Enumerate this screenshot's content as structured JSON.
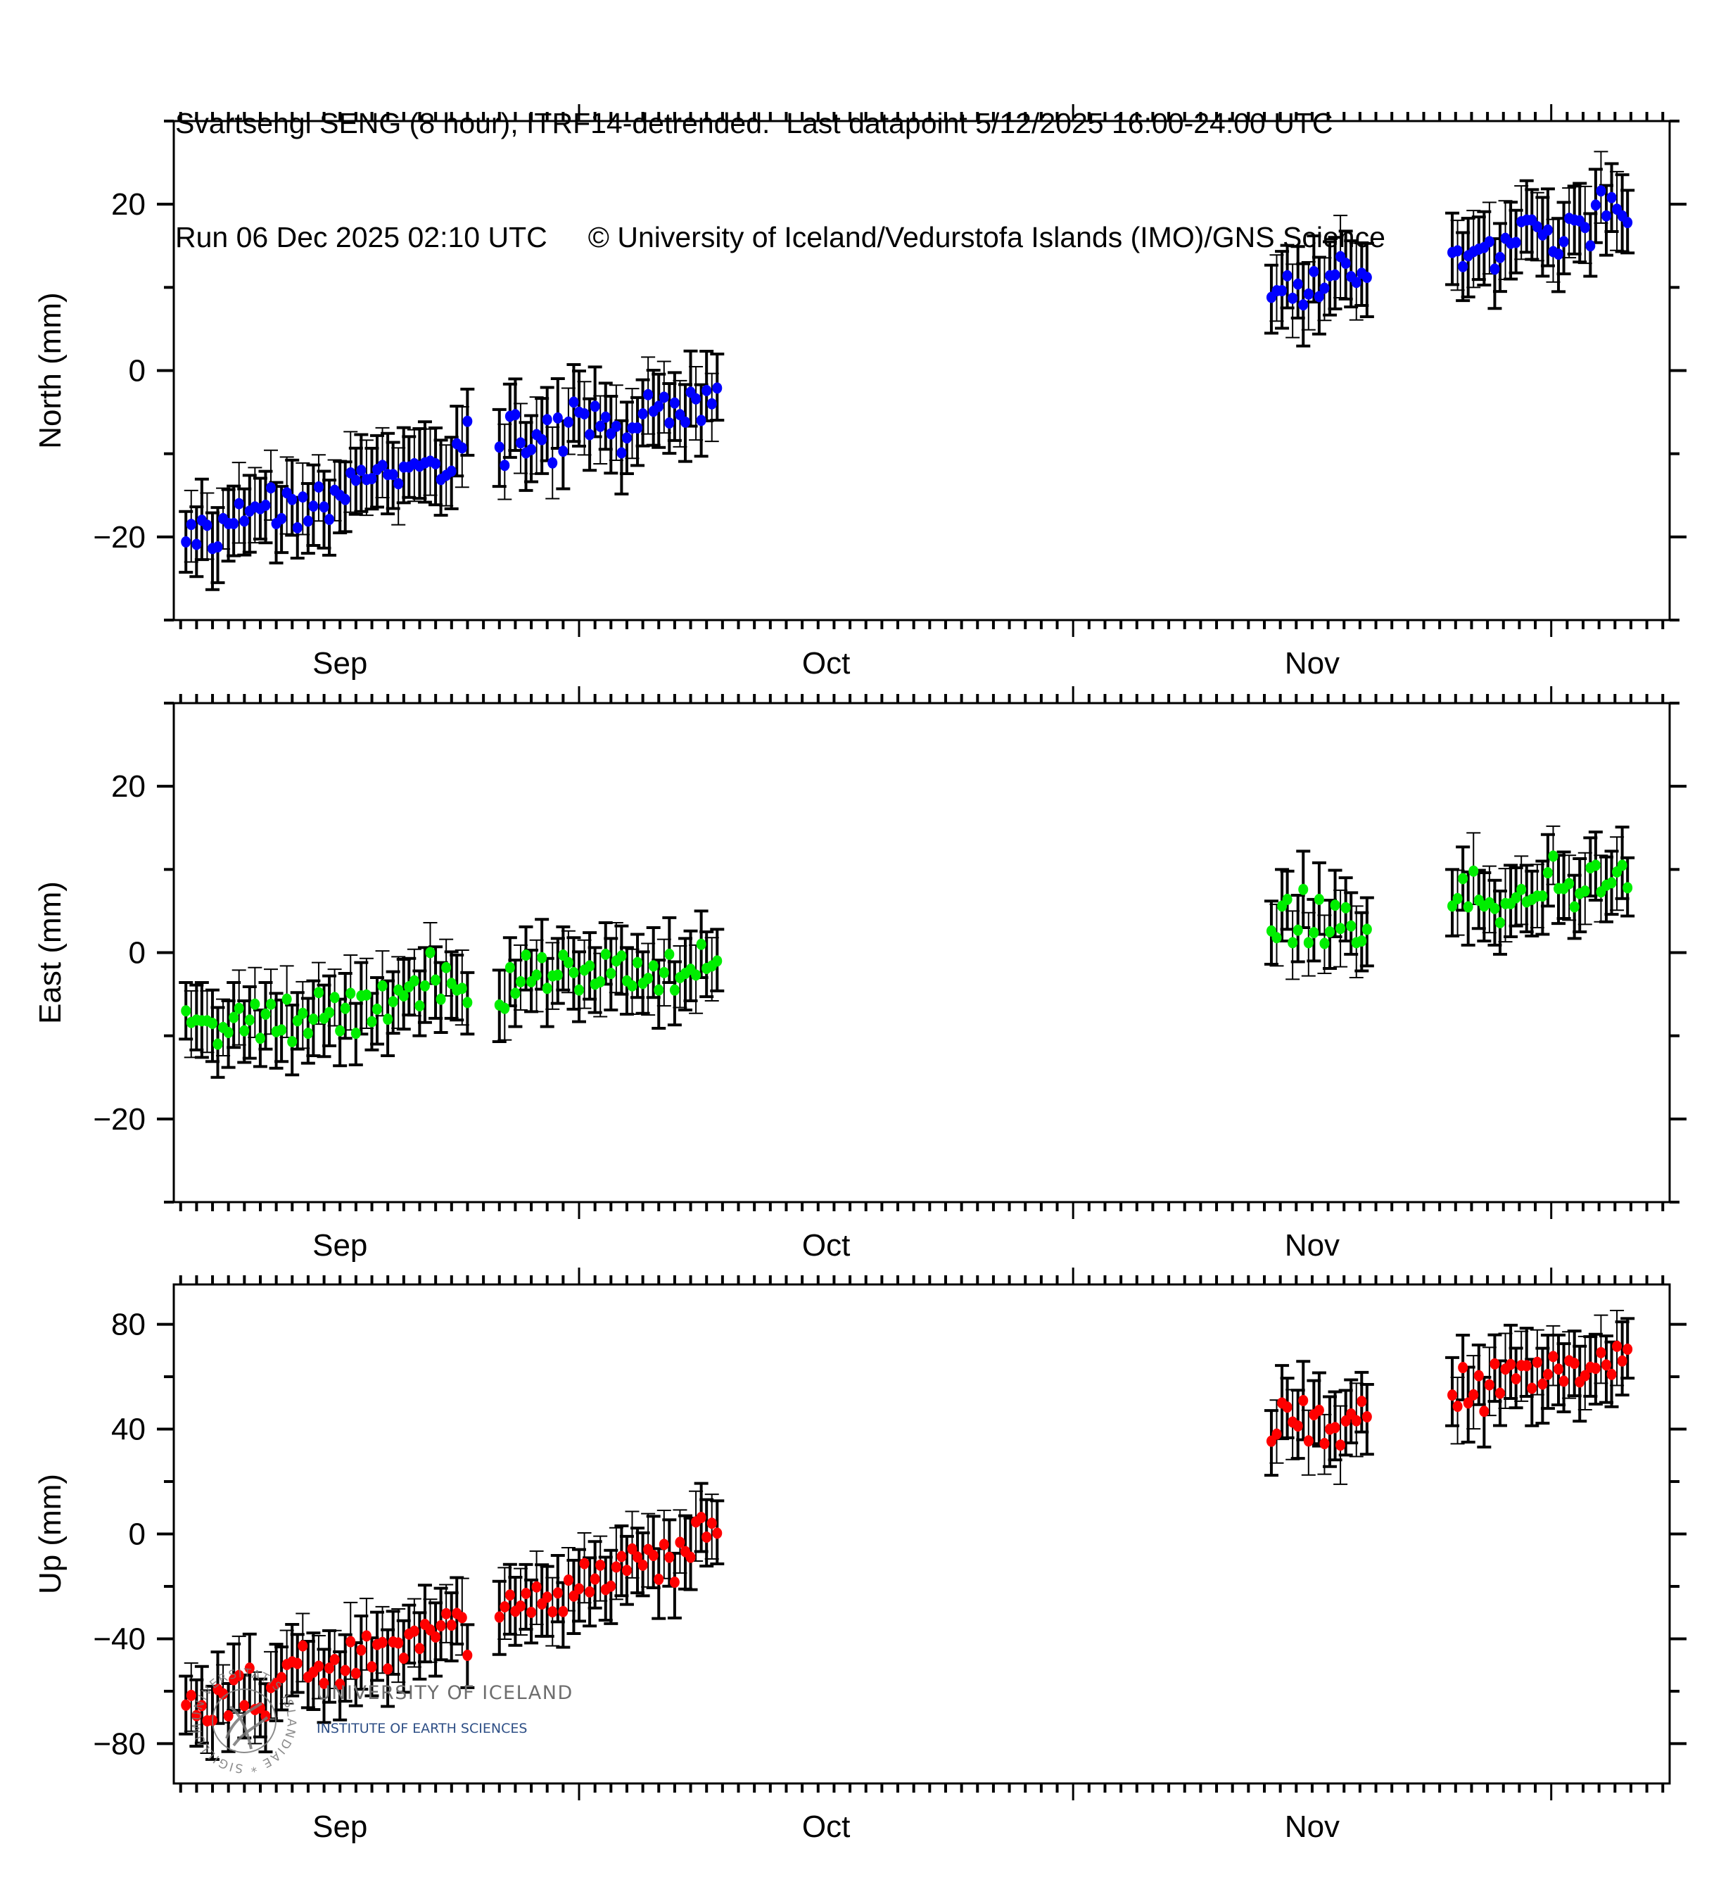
{
  "header": {
    "title_line1": "Svartsengi SENG (8 hour), ITRF14-detrended.  Last datapoint 5/12/2025 16:00-24:00 UTC",
    "run_text": "Run 06 Dec 2025 02:10 UTC",
    "copyright": "© University of Iceland/Vedurstofa Islands (IMO)/GNS Science"
  },
  "logo": {
    "university": "UNIVERSITY OF ICELAND",
    "institute": "INSTITUTE OF EARTH SCIENCES",
    "seal_text": "UNIVERSITATIS ISLANDIAE * SIGILLUM"
  },
  "colors": {
    "north": "#0000ff",
    "east": "#00ee00",
    "up": "#ff0000",
    "errorbar": "#000000",
    "axis": "#000000"
  },
  "chart_data": [
    {
      "type": "scatter",
      "title": "North",
      "ylabel": "North (mm)",
      "xlabel": "",
      "x_units": "days since 2025-10-01",
      "xlim": [
        -25.43,
        68.43
      ],
      "ylim": [
        -30,
        30
      ],
      "yticks_major": [
        -20,
        0,
        20
      ],
      "yticks_minor": [
        -30,
        -10,
        10,
        30
      ],
      "month_labels": [
        {
          "label": "Sep",
          "at": -15
        },
        {
          "label": "Oct",
          "at": 15.5
        },
        {
          "label": "Nov",
          "at": 46
        }
      ],
      "month_starts": [
        0,
        31,
        61
      ],
      "grid": false,
      "error_mm": 4.3,
      "color_key": "north",
      "groups": [
        {
          "start": -24.67,
          "step": 0.3333,
          "values": [
            -20.6,
            -18.5,
            -20.9,
            -18.0,
            -18.6,
            -21.4,
            -21.2,
            -17.8,
            -18.4,
            -18.4,
            -16.0,
            -18.1,
            -16.9,
            -16.4,
            -16.6,
            -16.2,
            -14.1,
            -18.4,
            -17.8,
            -14.7,
            -15.5,
            -18.9,
            -15.2,
            -18.1,
            -16.3,
            -14.0,
            -16.4,
            -17.9,
            -14.4,
            -15.0,
            -15.5,
            -12.3,
            -13.2,
            -12.0,
            -13.1,
            -13.0,
            -11.9,
            -11.4,
            -12.5,
            -12.5,
            -13.6,
            -11.6,
            -11.6,
            -11.2,
            -11.5,
            -11.1,
            -10.9,
            -11.2,
            -13.1,
            -12.6,
            -12.1,
            -8.8,
            -9.3,
            -6.1
          ]
        },
        {
          "start": -5.0,
          "step": 0.3333,
          "values": [
            -9.2,
            -11.4,
            -5.5,
            -5.3,
            -8.7,
            -9.9,
            -9.5,
            -7.7,
            -8.3,
            -5.9,
            -11.1,
            -5.7,
            -9.7,
            -6.2,
            -3.8,
            -5.0,
            -5.2,
            -7.7,
            -4.3,
            -6.7,
            -5.6,
            -7.6,
            -6.7,
            -9.9,
            -8.1,
            -6.9,
            -6.9,
            -5.2,
            -2.9,
            -4.9,
            -4.3,
            -3.2,
            -6.3,
            -3.9,
            -5.3,
            -6.2,
            -2.6,
            -3.4,
            -6.0,
            -2.4,
            -4.0,
            -2.1
          ]
        },
        {
          "start": 43.44,
          "step": 0.3333,
          "values": [
            8.8,
            9.6,
            9.6,
            11.4,
            8.7,
            10.4,
            7.9,
            9.2,
            11.9,
            8.9,
            9.9,
            11.4,
            11.5,
            13.7,
            12.9,
            11.3,
            10.6,
            11.7,
            11.2
          ]
        },
        {
          "start": 54.79,
          "step": 0.3333,
          "values": [
            14.2,
            14.4,
            12.5,
            13.8,
            14.3,
            14.6,
            14.8,
            15.5,
            12.2,
            13.6,
            15.9,
            15.3,
            15.4,
            17.9,
            18.1,
            18.1,
            17.3,
            16.3,
            16.9,
            14.3,
            14.0,
            15.5,
            18.3,
            18.1,
            18.0,
            17.2,
            15.0,
            19.9,
            21.6,
            18.6,
            20.8,
            19.4,
            18.6,
            17.8
          ]
        }
      ]
    },
    {
      "type": "scatter",
      "title": "East",
      "ylabel": "East (mm)",
      "xlabel": "",
      "x_units": "days since 2025-10-01",
      "xlim": [
        -25.43,
        68.43
      ],
      "ylim": [
        -30,
        30
      ],
      "yticks_major": [
        -20,
        0,
        20
      ],
      "yticks_minor": [
        -30,
        -10,
        10,
        30
      ],
      "month_labels": [
        {
          "label": "Sep",
          "at": -15
        },
        {
          "label": "Oct",
          "at": 15.5
        },
        {
          "label": "Nov",
          "at": 46
        }
      ],
      "month_starts": [
        0,
        31,
        61
      ],
      "grid": false,
      "error_mm": 4.0,
      "color_key": "east",
      "groups": [
        {
          "start": -24.67,
          "step": 0.3333,
          "values": [
            -7.0,
            -8.4,
            -8.1,
            -8.2,
            -8.2,
            -8.5,
            -11.0,
            -9.0,
            -9.6,
            -7.8,
            -6.7,
            -9.4,
            -8.1,
            -6.2,
            -10.3,
            -7.4,
            -6.2,
            -9.5,
            -9.3,
            -5.6,
            -10.7,
            -8.2,
            -7.3,
            -9.7,
            -8.0,
            -4.8,
            -7.9,
            -7.2,
            -5.4,
            -9.4,
            -6.7,
            -4.9,
            -9.7,
            -5.2,
            -5.1,
            -8.3,
            -6.8,
            -4.0,
            -8.0,
            -5.9,
            -4.5,
            -5.2,
            -4.1,
            -3.4,
            -6.4,
            -4.0,
            0.0,
            -3.3,
            -5.6,
            -1.8,
            -3.7,
            -4.5,
            -4.3,
            -6.0
          ]
        },
        {
          "start": -5.0,
          "step": 0.3333,
          "values": [
            -6.3,
            -6.7,
            -1.8,
            -4.9,
            -3.5,
            -0.3,
            -3.5,
            -2.7,
            -0.6,
            -4.3,
            -2.8,
            -2.7,
            -0.3,
            -1.2,
            -2.4,
            -4.5,
            -2.1,
            -1.6,
            -3.8,
            -3.5,
            -0.2,
            -2.5,
            -1.0,
            -0.4,
            -3.4,
            -4.0,
            -1.2,
            -3.7,
            -3.1,
            -1.6,
            -4.5,
            -2.4,
            -0.2,
            -4.5,
            -3.0,
            -2.5,
            -2.0,
            -2.7,
            1.0,
            -1.9,
            -1.6,
            -1.0
          ]
        },
        {
          "start": 43.44,
          "step": 0.3333,
          "values": [
            2.6,
            1.8,
            5.6,
            6.4,
            1.2,
            2.7,
            7.6,
            1.2,
            2.4,
            6.4,
            1.1,
            2.5,
            5.7,
            2.9,
            5.4,
            3.2,
            1.2,
            1.4,
            2.8
          ]
        },
        {
          "start": 54.79,
          "step": 0.3333,
          "values": [
            5.6,
            6.5,
            8.9,
            5.5,
            9.8,
            6.3,
            5.6,
            6.0,
            5.3,
            3.6,
            5.9,
            5.9,
            6.6,
            7.6,
            6.1,
            6.4,
            6.8,
            6.8,
            9.6,
            11.6,
            7.7,
            7.7,
            8.3,
            5.5,
            7.1,
            7.4,
            10.2,
            10.5,
            7.3,
            8.1,
            8.4,
            9.7,
            10.5,
            7.8
          ]
        }
      ]
    },
    {
      "type": "scatter",
      "title": "Up",
      "ylabel": "Up (mm)",
      "xlabel": "",
      "x_units": "days since 2025-10-01",
      "xlim": [
        -25.43,
        68.43
      ],
      "ylim": [
        -95.2,
        95.2
      ],
      "yticks_major": [
        -80,
        -40,
        0,
        40,
        80
      ],
      "yticks_minor": [
        -60,
        -20,
        20,
        60
      ],
      "month_labels": [
        {
          "label": "Sep",
          "at": -15
        },
        {
          "label": "Oct",
          "at": 15.5
        },
        {
          "label": "Nov",
          "at": 46
        }
      ],
      "month_starts": [
        0,
        31,
        61
      ],
      "grid": false,
      "error_mm": 13,
      "color_key": "up",
      "groups": [
        {
          "start": -24.67,
          "step": 0.3333,
          "values": [
            -65.3,
            -61.6,
            -69.3,
            -65.5,
            -71.3,
            -71.1,
            -59.3,
            -61.0,
            -69.4,
            -55.6,
            -54.0,
            -65.5,
            -51.2,
            -67.0,
            -66.4,
            -69.5,
            -58.6,
            -57.0,
            -54.8,
            -49.8,
            -48.8,
            -49.4,
            -42.7,
            -54.6,
            -52.7,
            -50.5,
            -57.0,
            -51.2,
            -47.9,
            -57.3,
            -52.1,
            -41.1,
            -53.2,
            -44.3,
            -38.9,
            -50.7,
            -42.2,
            -41.4,
            -51.5,
            -41.2,
            -41.6,
            -47.4,
            -38.2,
            -37.1,
            -43.7,
            -34.5,
            -36.6,
            -39.3,
            -35.0,
            -30.4,
            -34.8,
            -30.3,
            -31.9,
            -46.3
          ]
        },
        {
          "start": -5.0,
          "step": 0.3333,
          "values": [
            -31.7,
            -27.8,
            -23.3,
            -29.5,
            -27.5,
            -22.7,
            -29.9,
            -20.2,
            -26.7,
            -24.1,
            -29.7,
            -22.5,
            -29.6,
            -17.6,
            -23.7,
            -20.9,
            -11.3,
            -22.1,
            -17.2,
            -11.9,
            -21.2,
            -19.9,
            -12.6,
            -8.6,
            -13.9,
            -5.7,
            -8.8,
            -11.9,
            -5.9,
            -8.2,
            -17.3,
            -4.0,
            -8.9,
            -18.4,
            -3.2,
            -6.7,
            -8.9,
            4.6,
            6.3,
            -1.2,
            4.1,
            0.3
          ]
        },
        {
          "start": 43.44,
          "step": 0.3333,
          "values": [
            35.4,
            38.1,
            50.0,
            48.4,
            42.7,
            41.2,
            50.9,
            35.5,
            45.5,
            47.2,
            34.5,
            40.0,
            40.6,
            33.9,
            43.1,
            45.8,
            43.2,
            50.6,
            44.7
          ]
        },
        {
          "start": 54.79,
          "step": 0.3333,
          "values": [
            53.0,
            48.7,
            63.5,
            50.0,
            53.1,
            60.4,
            46.8,
            56.9,
            64.9,
            53.7,
            62.9,
            64.7,
            59.2,
            64.3,
            64.2,
            55.6,
            65.5,
            57.2,
            60.9,
            67.7,
            62.9,
            58.3,
            66.1,
            65.1,
            58.0,
            60.4,
            63.6,
            63.2,
            69.2,
            64.5,
            60.9,
            71.6,
            66.0,
            70.5
          ]
        }
      ]
    }
  ]
}
